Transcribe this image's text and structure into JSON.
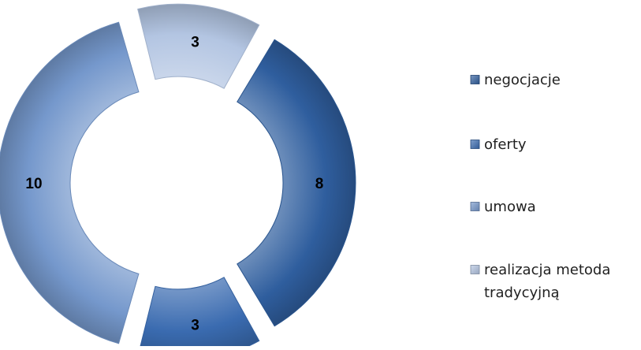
{
  "chart_data": {
    "type": "pie",
    "variant": "exploded doughnut",
    "categories": [
      "negocjacje",
      "oferty",
      "umowa",
      "realizacja metoda tradycyjną"
    ],
    "values": [
      8,
      3,
      10,
      3
    ],
    "data_labels": [
      "8",
      "3",
      "10",
      "3"
    ],
    "colors": [
      "#2f5e9e",
      "#3a6bb0",
      "#7598cc",
      "#b3c5e2"
    ],
    "legend_position": "right",
    "legend": [
      {
        "lines": [
          "negocjacje"
        ]
      },
      {
        "lines": [
          "oferty"
        ]
      },
      {
        "lines": [
          "umowa"
        ]
      },
      {
        "lines": [
          "realizacja metoda",
          "tradycyjną"
        ]
      }
    ],
    "title": ""
  }
}
